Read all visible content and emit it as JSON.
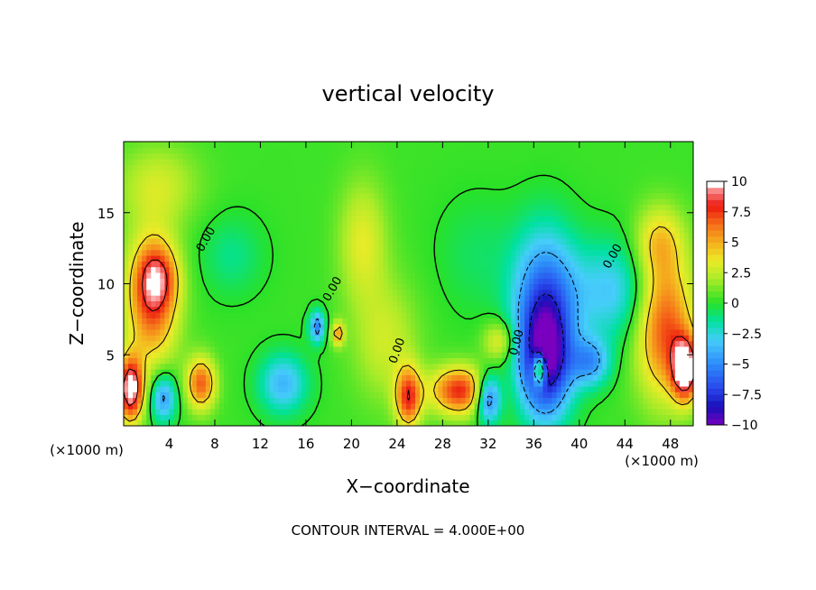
{
  "chart_data": {
    "type": "heatmap",
    "title": "vertical velocity",
    "xlabel": "X−coordinate",
    "ylabel": "Z−coordinate",
    "x_unit_label": "(×1000 m)",
    "z_unit_label": "(×1000 m)",
    "xlim": [
      0,
      50
    ],
    "ylim": [
      0,
      20
    ],
    "x_ticks": [
      4,
      8,
      12,
      16,
      20,
      24,
      28,
      32,
      36,
      40,
      44,
      48
    ],
    "x_tick_labels": [
      "4",
      "8",
      "12",
      "16",
      "20",
      "24",
      "28",
      "32",
      "36",
      "40",
      "44",
      "48"
    ],
    "y_ticks": [
      5,
      10,
      15
    ],
    "y_tick_labels": [
      "5",
      "10",
      "15"
    ],
    "contour_interval_text": "CONTOUR INTERVAL = 4.000E+00",
    "contour_label_text": "0.00",
    "colorbar": {
      "min": -10,
      "max": 10,
      "ticks": [
        10,
        7.5,
        5,
        2.5,
        0,
        -2.5,
        -5,
        -7.5,
        -10
      ],
      "tick_labels": [
        "10",
        "7.5",
        "5",
        "2.5",
        "0",
        "−2.5",
        "−5",
        "−7.5",
        "−10"
      ]
    },
    "features": [
      {
        "x": 2.5,
        "z": 9.0,
        "value": 7.0,
        "sx": 1.6,
        "sz": 3.2
      },
      {
        "x": 3.0,
        "z": 10.5,
        "value": 4.0,
        "sx": 1.2,
        "sz": 1.5
      },
      {
        "x": 0.6,
        "z": 2.6,
        "value": 10.0,
        "sx": 0.8,
        "sz": 1.6
      },
      {
        "x": 3.5,
        "z": 2.0,
        "value": -5.0,
        "sx": 0.8,
        "sz": 1.2
      },
      {
        "x": 6.8,
        "z": 3.0,
        "value": 6.5,
        "sx": 0.9,
        "sz": 1.3
      },
      {
        "x": 9.5,
        "z": 12.0,
        "value": -1.5,
        "sx": 2.0,
        "sz": 2.0
      },
      {
        "x": 14.0,
        "z": 3.0,
        "value": -4.0,
        "sx": 1.5,
        "sz": 1.5
      },
      {
        "x": 17.0,
        "z": 7.0,
        "value": -5.5,
        "sx": 0.5,
        "sz": 0.8
      },
      {
        "x": 18.8,
        "z": 6.5,
        "value": 5.0,
        "sx": 0.4,
        "sz": 0.6
      },
      {
        "x": 21.0,
        "z": 13.0,
        "value": 3.0,
        "sx": 1.5,
        "sz": 3.0
      },
      {
        "x": 25.0,
        "z": 2.0,
        "value": 7.0,
        "sx": 0.8,
        "sz": 1.5
      },
      {
        "x": 29.5,
        "z": 2.5,
        "value": 7.5,
        "sx": 1.8,
        "sz": 1.2
      },
      {
        "x": 32.0,
        "z": 2.0,
        "value": -7.0,
        "sx": 0.8,
        "sz": 1.2
      },
      {
        "x": 37.0,
        "z": 4.5,
        "value": -9.0,
        "sx": 1.6,
        "sz": 2.8
      },
      {
        "x": 37.0,
        "z": 9.0,
        "value": -6.0,
        "sx": 2.0,
        "sz": 3.5
      },
      {
        "x": 36.5,
        "z": 4.0,
        "value": 9.5,
        "sx": 0.4,
        "sz": 0.8
      },
      {
        "x": 41.0,
        "z": 4.5,
        "value": -4.5,
        "sx": 1.2,
        "sz": 1.2
      },
      {
        "x": 43.0,
        "z": 9.5,
        "value": -3.5,
        "sx": 2.5,
        "sz": 2.5
      },
      {
        "x": 47.5,
        "z": 7.0,
        "value": 7.0,
        "sx": 1.8,
        "sz": 3.5
      },
      {
        "x": 49.3,
        "z": 4.0,
        "value": 10.0,
        "sx": 0.8,
        "sz": 1.5
      },
      {
        "x": 47.0,
        "z": 13.0,
        "value": 3.5,
        "sx": 1.5,
        "sz": 1.8
      },
      {
        "x": 3.0,
        "z": 17.0,
        "value": 2.5,
        "sx": 2.5,
        "sz": 2.0
      },
      {
        "x": 23.0,
        "z": 6.0,
        "value": 2.5,
        "sx": 2.0,
        "sz": 3.0
      },
      {
        "x": 33.0,
        "z": 6.0,
        "value": 3.5,
        "sx": 1.0,
        "sz": 1.0
      },
      {
        "x": 31.0,
        "z": 12.0,
        "value": -1.0,
        "sx": 2.5,
        "sz": 3.0
      }
    ]
  }
}
